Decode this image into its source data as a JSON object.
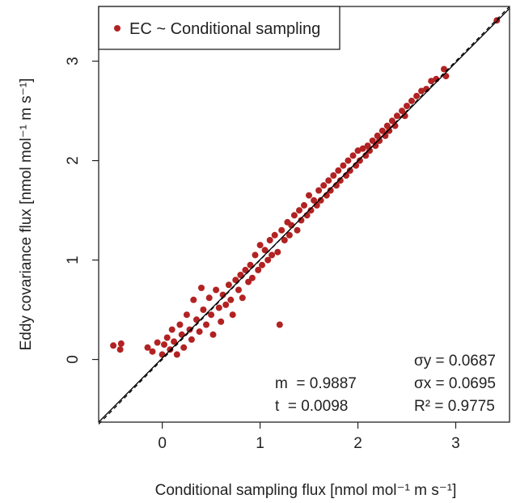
{
  "chart_data": {
    "type": "scatter",
    "xlabel": "Conditional sampling flux [nmol mol⁻¹ m s⁻¹]",
    "ylabel": "Eddy covariance flux [nmol mol⁻¹ m s⁻¹]",
    "xlim": [
      -0.65,
      3.55
    ],
    "ylim": [
      -0.63,
      3.55
    ],
    "xticks": [
      0,
      1,
      2,
      3
    ],
    "yticks": [
      0,
      1,
      2,
      3
    ],
    "xtick_labels": [
      "0",
      "1",
      "2",
      "3"
    ],
    "ytick_labels": [
      "0",
      "1",
      "2",
      "3"
    ],
    "grid": false,
    "legend": {
      "position": "top-left",
      "entries": [
        "EC ~ Conditional sampling"
      ]
    },
    "point_color": "#b22222",
    "series": [
      {
        "name": "EC ~ Conditional sampling",
        "points": [
          [
            -0.5,
            0.14
          ],
          [
            -0.43,
            0.1
          ],
          [
            -0.42,
            0.16
          ],
          [
            -0.15,
            0.12
          ],
          [
            -0.1,
            0.08
          ],
          [
            -0.05,
            0.17
          ],
          [
            0.0,
            0.05
          ],
          [
            0.02,
            0.15
          ],
          [
            0.05,
            0.22
          ],
          [
            0.08,
            0.1
          ],
          [
            0.1,
            0.3
          ],
          [
            0.12,
            0.18
          ],
          [
            0.15,
            0.05
          ],
          [
            0.18,
            0.35
          ],
          [
            0.2,
            0.25
          ],
          [
            0.22,
            0.12
          ],
          [
            0.25,
            0.45
          ],
          [
            0.28,
            0.3
          ],
          [
            0.3,
            0.2
          ],
          [
            0.32,
            0.6
          ],
          [
            0.35,
            0.4
          ],
          [
            0.38,
            0.28
          ],
          [
            0.4,
            0.72
          ],
          [
            0.42,
            0.5
          ],
          [
            0.45,
            0.35
          ],
          [
            0.48,
            0.62
          ],
          [
            0.5,
            0.45
          ],
          [
            0.52,
            0.25
          ],
          [
            0.55,
            0.7
          ],
          [
            0.58,
            0.52
          ],
          [
            0.6,
            0.38
          ],
          [
            0.62,
            0.65
          ],
          [
            0.65,
            0.55
          ],
          [
            0.68,
            0.75
          ],
          [
            0.7,
            0.6
          ],
          [
            0.72,
            0.45
          ],
          [
            0.75,
            0.8
          ],
          [
            0.78,
            0.7
          ],
          [
            0.8,
            0.85
          ],
          [
            0.82,
            0.62
          ],
          [
            0.85,
            0.9
          ],
          [
            0.88,
            0.78
          ],
          [
            0.9,
            0.95
          ],
          [
            0.92,
            0.82
          ],
          [
            0.95,
            1.05
          ],
          [
            0.98,
            0.9
          ],
          [
            1.0,
            1.15
          ],
          [
            1.02,
            0.95
          ],
          [
            1.05,
            1.1
          ],
          [
            1.08,
            1.0
          ],
          [
            1.1,
            1.2
          ],
          [
            1.12,
            1.05
          ],
          [
            1.15,
            1.25
          ],
          [
            1.18,
            1.08
          ],
          [
            1.2,
            0.35
          ],
          [
            1.22,
            1.3
          ],
          [
            1.25,
            1.2
          ],
          [
            1.28,
            1.38
          ],
          [
            1.3,
            1.25
          ],
          [
            1.32,
            1.35
          ],
          [
            1.35,
            1.45
          ],
          [
            1.38,
            1.3
          ],
          [
            1.4,
            1.5
          ],
          [
            1.42,
            1.4
          ],
          [
            1.45,
            1.55
          ],
          [
            1.48,
            1.45
          ],
          [
            1.5,
            1.65
          ],
          [
            1.52,
            1.5
          ],
          [
            1.55,
            1.6
          ],
          [
            1.58,
            1.55
          ],
          [
            1.6,
            1.7
          ],
          [
            1.62,
            1.6
          ],
          [
            1.65,
            1.75
          ],
          [
            1.68,
            1.65
          ],
          [
            1.7,
            1.8
          ],
          [
            1.72,
            1.7
          ],
          [
            1.75,
            1.85
          ],
          [
            1.78,
            1.75
          ],
          [
            1.8,
            1.9
          ],
          [
            1.82,
            1.8
          ],
          [
            1.85,
            1.95
          ],
          [
            1.88,
            1.85
          ],
          [
            1.9,
            2.0
          ],
          [
            1.92,
            1.9
          ],
          [
            1.95,
            2.05
          ],
          [
            1.98,
            1.95
          ],
          [
            2.0,
            2.1
          ],
          [
            2.02,
            2.0
          ],
          [
            2.05,
            2.12
          ],
          [
            2.08,
            2.05
          ],
          [
            2.1,
            2.15
          ],
          [
            2.12,
            2.1
          ],
          [
            2.15,
            2.2
          ],
          [
            2.18,
            2.15
          ],
          [
            2.2,
            2.25
          ],
          [
            2.22,
            2.2
          ],
          [
            2.25,
            2.3
          ],
          [
            2.28,
            2.25
          ],
          [
            2.3,
            2.35
          ],
          [
            2.32,
            2.3
          ],
          [
            2.35,
            2.4
          ],
          [
            2.38,
            2.35
          ],
          [
            2.4,
            2.45
          ],
          [
            2.45,
            2.5
          ],
          [
            2.48,
            2.45
          ],
          [
            2.5,
            2.55
          ],
          [
            2.55,
            2.6
          ],
          [
            2.6,
            2.65
          ],
          [
            2.65,
            2.7
          ],
          [
            2.7,
            2.72
          ],
          [
            2.75,
            2.8
          ],
          [
            2.8,
            2.82
          ],
          [
            2.88,
            2.92
          ],
          [
            2.9,
            2.85
          ],
          [
            3.42,
            3.41
          ]
        ]
      }
    ],
    "lines": [
      {
        "kind": "fit",
        "style": "solid",
        "from": [
          -0.65,
          -0.63
        ],
        "to": [
          3.55,
          3.53
        ]
      },
      {
        "kind": "one-to-one",
        "style": "dashed",
        "from": [
          -0.65,
          -0.65
        ],
        "to": [
          3.55,
          3.55
        ]
      }
    ],
    "annotations": {
      "m": "m  = 0.9887",
      "t": "t  = 0.0098",
      "sigma_y": "σy = 0.0687",
      "sigma_x": "σx = 0.0695",
      "r2": "R² = 0.9775"
    }
  }
}
